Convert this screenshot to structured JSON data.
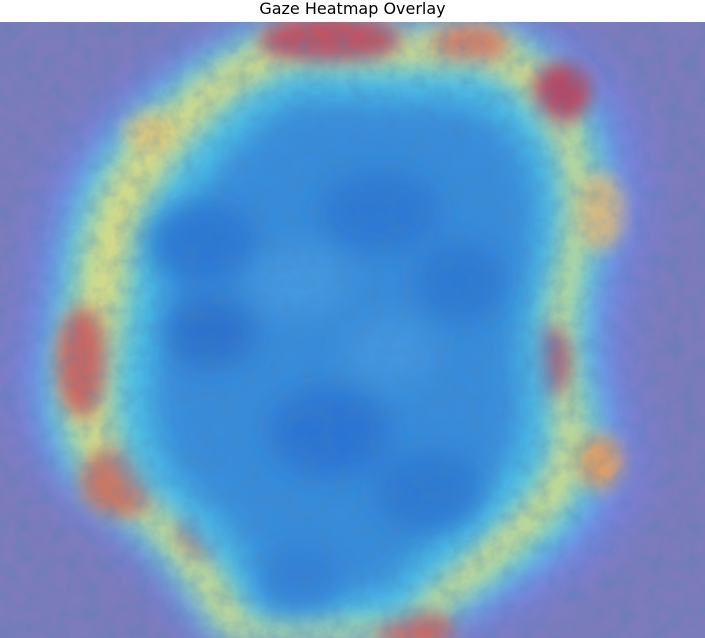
{
  "figure": {
    "title": "Gaze Heatmap Overlay"
  },
  "colors": {
    "background_tint": "#7674b8",
    "low": "#6f7ff0",
    "mid_blue": "#2f86d9",
    "cyan": "#43c9e6",
    "yellow": "#e8dc72",
    "orange": "#e09a5a",
    "hot": "#b94b5d"
  }
}
